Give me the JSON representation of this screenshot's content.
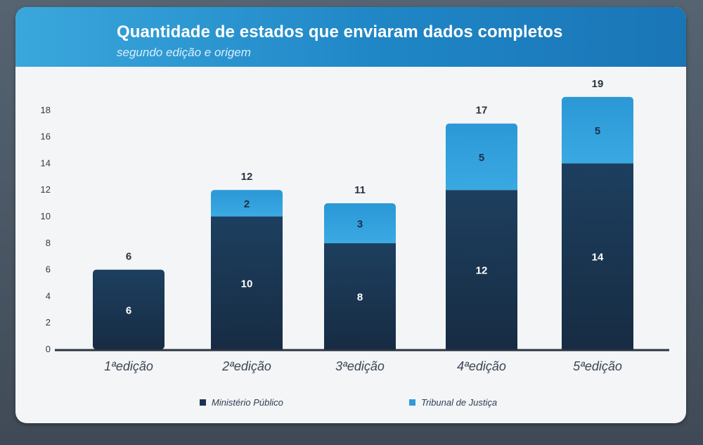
{
  "chart_data": {
    "type": "bar",
    "stacked": true,
    "title": "Quantidade de estados que enviaram dados completos",
    "subtitle": "segundo edição e origem",
    "categories": [
      "1ªedição",
      "2ªedição",
      "3ªedição",
      "4ªedição",
      "5ªedição"
    ],
    "series": [
      {
        "name": "Ministério Público",
        "values": [
          6,
          10,
          8,
          12,
          14
        ],
        "color": "#1b3550"
      },
      {
        "name": "Tribunal de Justiça",
        "values": [
          0,
          2,
          3,
          5,
          5
        ],
        "color": "#2f9bd6"
      }
    ],
    "totals": [
      6,
      12,
      11,
      17,
      19
    ],
    "yticks": [
      0,
      2,
      4,
      6,
      8,
      10,
      12,
      14,
      16,
      18
    ],
    "ylim": [
      0,
      18
    ],
    "grid": false,
    "legend_position": "bottom"
  }
}
